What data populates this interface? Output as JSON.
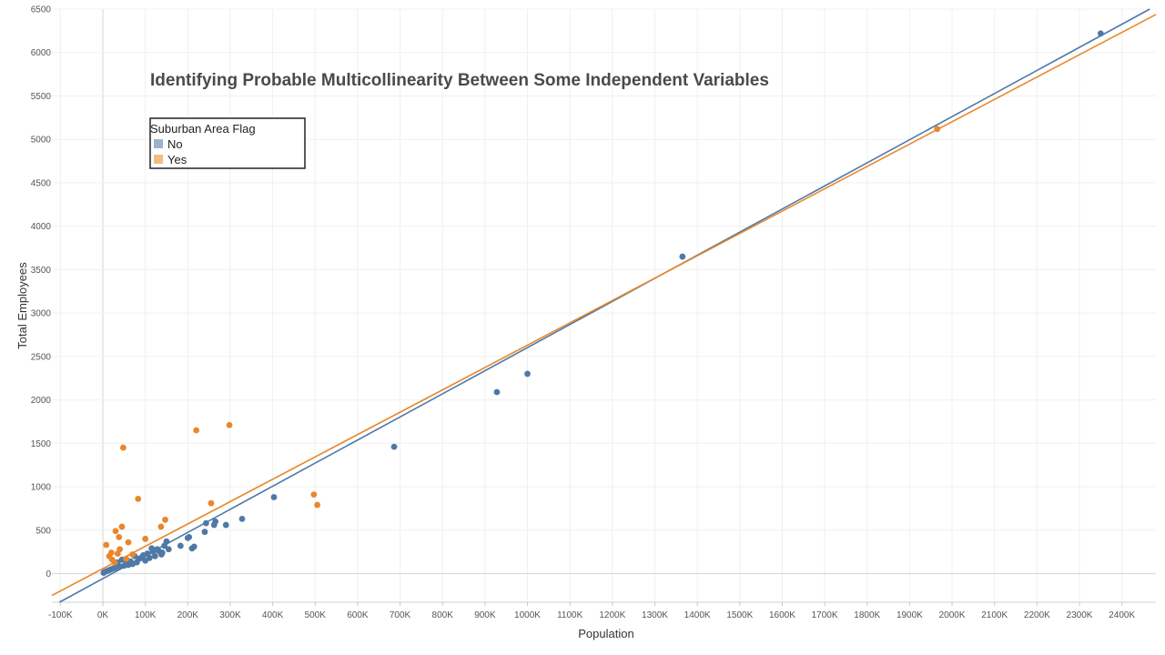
{
  "chart_data": {
    "type": "scatter",
    "title": "Identifying Probable Multicollinearity Between Some Independent Variables",
    "xlabel": "Population",
    "ylabel": "Total Employees",
    "xlim": [
      -120,
      2480
    ],
    "ylim": [
      -330,
      6500
    ],
    "x_unit": "K",
    "x_ticks": [
      -100,
      0,
      100,
      200,
      300,
      400,
      500,
      600,
      700,
      800,
      900,
      1000,
      1100,
      1200,
      1300,
      1400,
      1500,
      1600,
      1700,
      1800,
      1900,
      2000,
      2100,
      2200,
      2300,
      2400
    ],
    "x_tick_labels": [
      "-100K",
      "0K",
      "100K",
      "200K",
      "300K",
      "400K",
      "500K",
      "600K",
      "700K",
      "800K",
      "900K",
      "1000K",
      "1100K",
      "1200K",
      "1300K",
      "1400K",
      "1500K",
      "1600K",
      "1700K",
      "1800K",
      "1900K",
      "2000K",
      "2100K",
      "2200K",
      "2300K",
      "2400K"
    ],
    "y_ticks": [
      0,
      500,
      1000,
      1500,
      2000,
      2500,
      3000,
      3500,
      4000,
      4500,
      5000,
      5500,
      6000,
      6500
    ],
    "y_tick_labels": [
      "0",
      "500",
      "1000",
      "1500",
      "2000",
      "2500",
      "3000",
      "3500",
      "4000",
      "4500",
      "5000",
      "5500",
      "6000",
      "6500"
    ],
    "grid": true,
    "legend": {
      "title": "Suburban Area Flag",
      "position": "top-left",
      "entries": [
        {
          "label": "No",
          "color": "#9bb2cc"
        },
        {
          "label": "Yes",
          "color": "#f4bb83"
        }
      ]
    },
    "series": [
      {
        "name": "No",
        "color": "#4e79a7",
        "x": [
          2350,
          1365,
          1000,
          928,
          686,
          403,
          328,
          290,
          265,
          262,
          243,
          240,
          215,
          210,
          203,
          200,
          183,
          155,
          150,
          145,
          140,
          138,
          132,
          128,
          123,
          118,
          115,
          110,
          105,
          100,
          95,
          90,
          85,
          80,
          75,
          70,
          65,
          60,
          55,
          50,
          45,
          40,
          35,
          30,
          25,
          20,
          15,
          10,
          5,
          2
        ],
        "y": [
          6220,
          3650,
          2300,
          2090,
          1460,
          880,
          630,
          560,
          600,
          560,
          580,
          480,
          310,
          290,
          420,
          410,
          320,
          280,
          370,
          320,
          240,
          220,
          260,
          280,
          200,
          250,
          290,
          180,
          230,
          150,
          210,
          180,
          170,
          130,
          200,
          110,
          140,
          100,
          150,
          90,
          160,
          80,
          130,
          70,
          60,
          50,
          40,
          30,
          20,
          10
        ]
      },
      {
        "name": "Yes",
        "color": "#e8872b",
        "x": [
          1965,
          298,
          220,
          48,
          505,
          497,
          255,
          83,
          147,
          38,
          45,
          137,
          30,
          100,
          60,
          8,
          20,
          40,
          35,
          15,
          22,
          70,
          28,
          55
        ],
        "y": [
          5120,
          1710,
          1650,
          1450,
          790,
          910,
          810,
          860,
          620,
          420,
          540,
          540,
          490,
          400,
          360,
          330,
          240,
          280,
          230,
          200,
          160,
          220,
          130,
          170
        ]
      }
    ],
    "trendlines": [
      {
        "name": "No",
        "color": "#4e79a7",
        "slope": 2.66,
        "intercept": -58
      },
      {
        "name": "Yes",
        "color": "#e8872b",
        "slope": 2.573,
        "intercept": 57
      }
    ]
  }
}
